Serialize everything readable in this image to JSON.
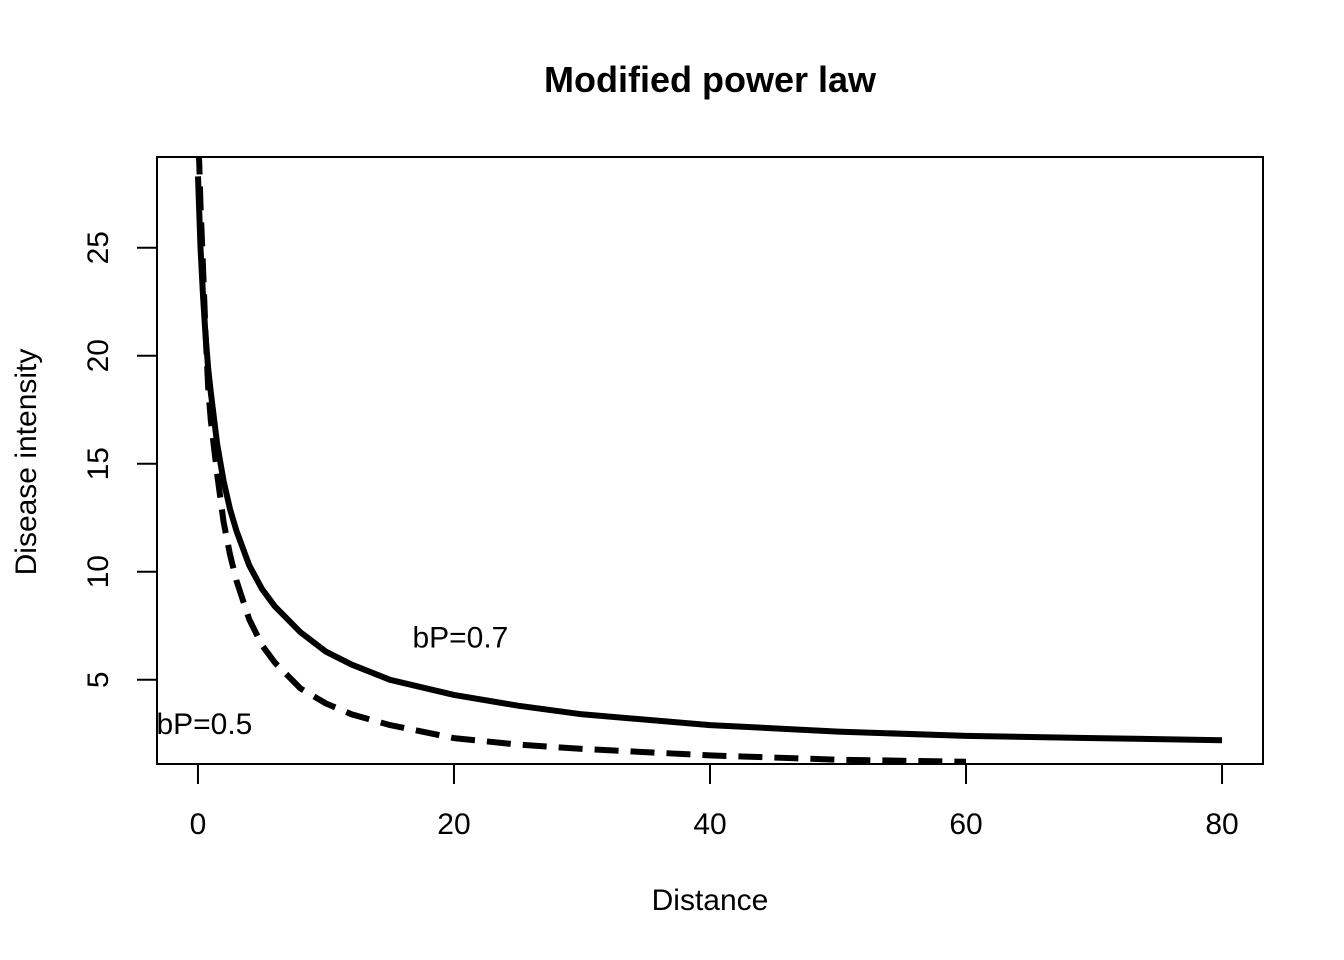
{
  "chart_data": {
    "type": "line",
    "title": "Modified power law",
    "xlabel": "Distance",
    "ylabel": "Disease intensity",
    "xlim": [
      -3.2,
      83.2
    ],
    "ylim": [
      1.1,
      29.2
    ],
    "xticks": [
      0,
      20,
      40,
      60,
      80
    ],
    "yticks": [
      5,
      10,
      15,
      20,
      25
    ],
    "grid": false,
    "legend": "none",
    "series": [
      {
        "style": "solid",
        "x": [
          0,
          0.2,
          0.4,
          0.6,
          0.8,
          1,
          1.5,
          2,
          2.5,
          3,
          4,
          5,
          6,
          8,
          10,
          12,
          15,
          20,
          25,
          30,
          40,
          50,
          60,
          70,
          80
        ],
        "y": [
          28.3,
          25.0,
          22.7,
          20.9,
          19.4,
          18.3,
          15.9,
          14.2,
          12.9,
          11.9,
          10.3,
          9.2,
          8.4,
          7.2,
          6.3,
          5.7,
          5.0,
          4.3,
          3.8,
          3.4,
          2.9,
          2.6,
          2.4,
          2.3,
          2.2
        ]
      },
      {
        "style": "dashed",
        "x": [
          0,
          0.1,
          0.2,
          0.4,
          0.6,
          0.8,
          1,
          1.5,
          2,
          2.5,
          3,
          4,
          5,
          6,
          8,
          10,
          12,
          15,
          20,
          25,
          30,
          40,
          50,
          60
        ],
        "y": [
          29.5,
          29.0,
          27.0,
          24.0,
          21.0,
          18.5,
          17.0,
          14.5,
          12.3,
          10.8,
          9.6,
          7.8,
          6.6,
          5.8,
          4.6,
          3.9,
          3.4,
          2.9,
          2.3,
          2.0,
          1.8,
          1.5,
          1.3,
          1.2
        ]
      }
    ],
    "annotations": [
      {
        "text": "bP=0.7",
        "x": 20.5,
        "y": 7.0
      },
      {
        "text": "bP=0.5",
        "x": 0.5,
        "y": 3.0
      }
    ]
  }
}
